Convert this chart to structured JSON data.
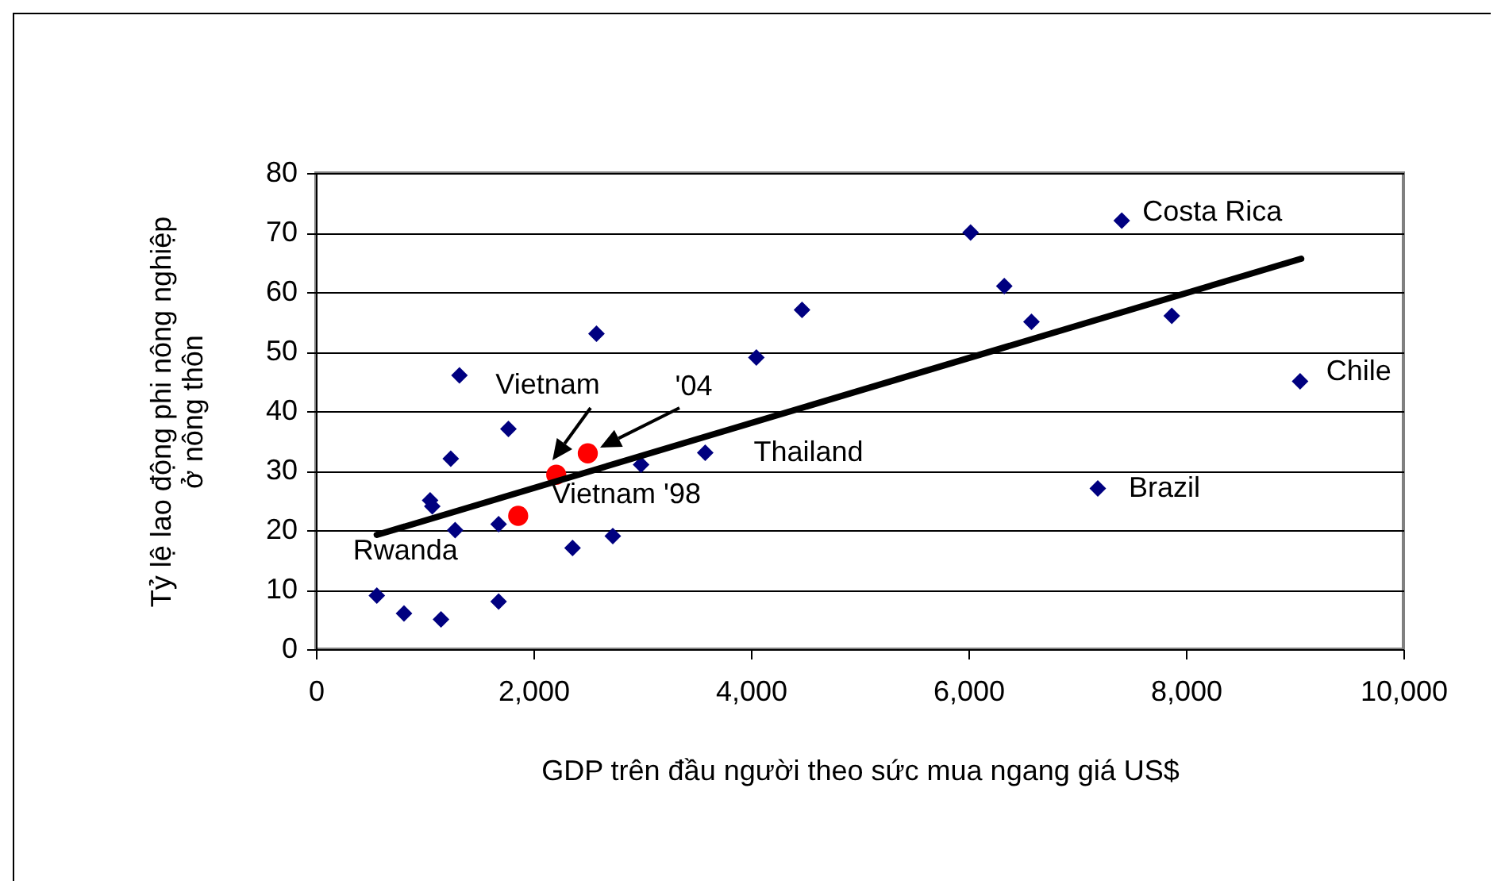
{
  "chart_data": {
    "type": "scatter",
    "xlabel": "GDP trên đầu người theo sức mua ngang giá US$",
    "ylabel": "Tỷ lệ lao động phi nông nghiệp\nở nông thôn",
    "xlim": [
      0,
      10000
    ],
    "ylim": [
      0,
      80
    ],
    "xticks": [
      0,
      {
        "value": 2000,
        "label": "2,000"
      },
      {
        "value": 4000,
        "label": "4,000"
      },
      {
        "value": 6000,
        "label": "6,000"
      },
      {
        "value": 8000,
        "label": "8,000"
      },
      {
        "value": 10000,
        "label": "10,000"
      }
    ],
    "yticks": [
      0,
      10,
      20,
      30,
      40,
      50,
      60,
      70,
      80
    ],
    "grid": "y",
    "series": [
      {
        "color": "#000080",
        "marker": "diamond",
        "x": [
          560,
          810,
          1150,
          1050,
          1070,
          1240,
          1320,
          1280,
          1770,
          1680,
          1680,
          2580,
          2360,
          2730,
          2990,
          3580,
          4050,
          4470,
          6020,
          6330,
          6580,
          7410,
          7870,
          9050,
          7190
        ],
        "values": [
          9,
          6,
          5,
          25,
          24,
          32,
          46,
          20,
          37,
          21,
          8,
          53,
          17,
          19,
          31,
          33,
          49,
          57,
          70,
          61,
          55,
          72,
          56,
          45,
          27
        ]
      },
      {
        "color": "#ff0000",
        "marker": "circle",
        "x": [
          2210,
          2500,
          1860
        ],
        "values": [
          29.3,
          32.9,
          22.4
        ]
      },
      {
        "type": "line",
        "color": "#000000",
        "x": [
          560,
          9060
        ],
        "values": [
          19.2,
          65.6
        ]
      }
    ],
    "annotations": [
      "Vietnam",
      "'04",
      {
        "text": "Vietnam '98",
        "x": 1860,
        "y": 22.4
      },
      {
        "text": "Rwanda",
        "x": 560,
        "y": 9
      },
      {
        "text": "Thailand",
        "x": 3580,
        "y": 33
      },
      {
        "text": "Costa Rica",
        "x": 7410,
        "y": 72
      },
      {
        "text": "Chile",
        "x": 9050,
        "y": 45
      },
      {
        "text": "Brazil",
        "x": 7190,
        "y": 27
      }
    ]
  }
}
